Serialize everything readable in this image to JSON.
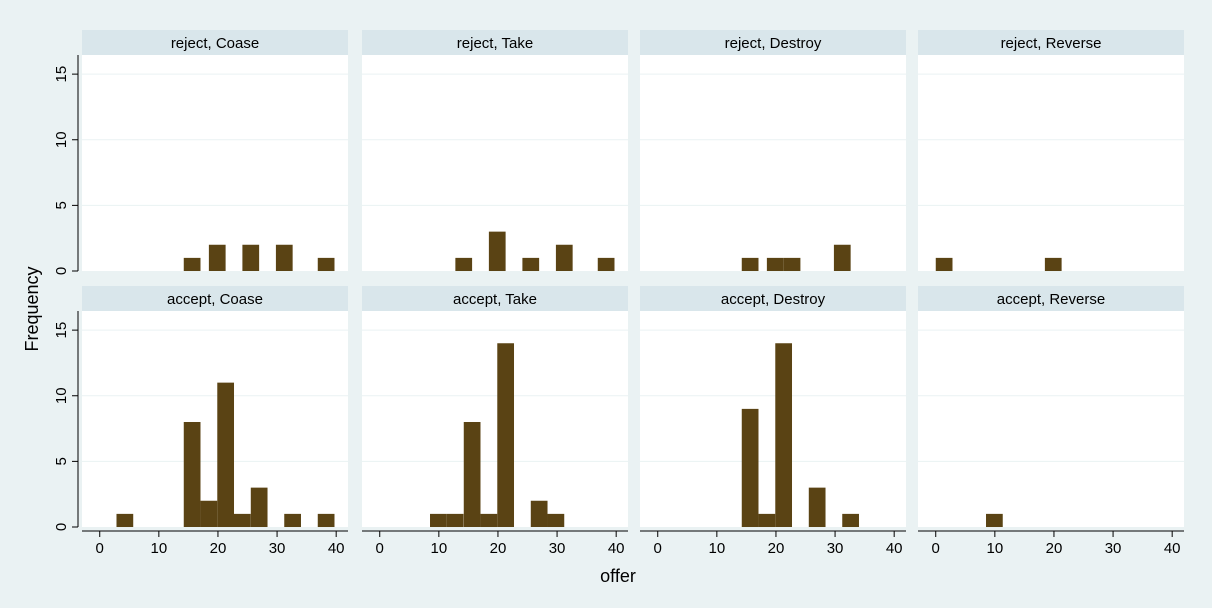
{
  "chart_data": {
    "type": "bar",
    "ylabel": "Frequency",
    "xlabel": "offer",
    "x_ticks": [
      0,
      10,
      20,
      30,
      40
    ],
    "y_ticks": [
      0,
      5,
      10,
      15
    ],
    "xlim": [
      -3,
      42
    ],
    "ylim": [
      0,
      16
    ],
    "bin_width": 2.83,
    "grid": true,
    "colors": {
      "outer_background": "#eaf2f3",
      "plot_background": "#ffffff",
      "panel_header": "#d9e6eb",
      "bar_fill": "#5a4314",
      "gridline": "#eaf2f3",
      "axis": "#000000"
    },
    "panels": [
      {
        "title": "reject, Coase",
        "bars": [
          {
            "x": 15.63,
            "y": 1
          },
          {
            "x": 19.88,
            "y": 2
          },
          {
            "x": 25.55,
            "y": 2
          },
          {
            "x": 31.22,
            "y": 2
          },
          {
            "x": 38.3,
            "y": 1
          }
        ]
      },
      {
        "title": "reject, Take",
        "bars": [
          {
            "x": 14.21,
            "y": 1
          },
          {
            "x": 19.88,
            "y": 3
          },
          {
            "x": 25.55,
            "y": 1
          },
          {
            "x": 31.22,
            "y": 2
          },
          {
            "x": 38.3,
            "y": 1
          }
        ]
      },
      {
        "title": "reject, Destroy",
        "bars": [
          {
            "x": 15.63,
            "y": 1
          },
          {
            "x": 19.88,
            "y": 1
          },
          {
            "x": 22.72,
            "y": 1
          },
          {
            "x": 31.22,
            "y": 2
          }
        ]
      },
      {
        "title": "reject, Reverse",
        "bars": [
          {
            "x": 1.42,
            "y": 1
          },
          {
            "x": 19.88,
            "y": 1
          }
        ]
      },
      {
        "title": "accept, Coase",
        "bars": [
          {
            "x": 4.25,
            "y": 1
          },
          {
            "x": 15.63,
            "y": 8
          },
          {
            "x": 18.47,
            "y": 2
          },
          {
            "x": 21.3,
            "y": 11
          },
          {
            "x": 24.13,
            "y": 1
          },
          {
            "x": 26.97,
            "y": 3
          },
          {
            "x": 32.63,
            "y": 1
          },
          {
            "x": 38.3,
            "y": 1
          }
        ]
      },
      {
        "title": "accept, Take",
        "bars": [
          {
            "x": 9.92,
            "y": 1
          },
          {
            "x": 12.75,
            "y": 1
          },
          {
            "x": 15.63,
            "y": 8
          },
          {
            "x": 18.47,
            "y": 1
          },
          {
            "x": 21.3,
            "y": 14
          },
          {
            "x": 26.97,
            "y": 2
          },
          {
            "x": 29.8,
            "y": 1
          }
        ]
      },
      {
        "title": "accept, Destroy",
        "bars": [
          {
            "x": 15.63,
            "y": 9
          },
          {
            "x": 18.47,
            "y": 1
          },
          {
            "x": 21.3,
            "y": 14
          },
          {
            "x": 26.97,
            "y": 3
          },
          {
            "x": 32.63,
            "y": 1
          }
        ]
      },
      {
        "title": "accept, Reverse",
        "bars": [
          {
            "x": 9.92,
            "y": 1
          }
        ]
      }
    ]
  }
}
